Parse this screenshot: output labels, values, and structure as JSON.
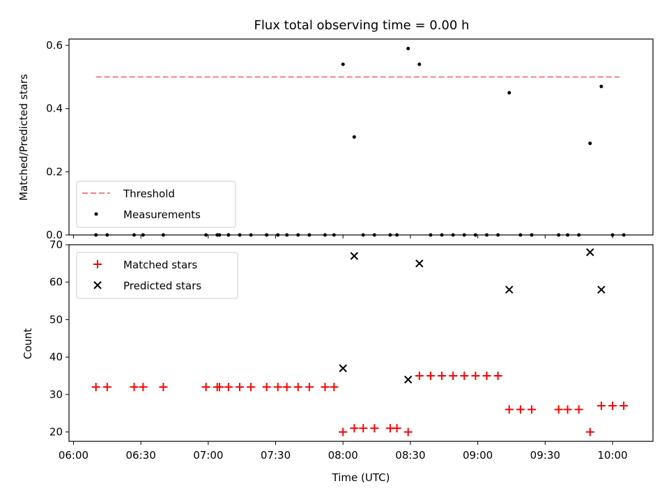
{
  "chart_data": [
    {
      "type": "scatter",
      "title": "Flux total observing time = 0.00 h",
      "ylabel": "Matched/Predicted stars",
      "ylim": [
        0,
        0.62
      ],
      "yticks": [
        0.0,
        0.2,
        0.4,
        0.6
      ],
      "ytick_labels": [
        "0.0",
        "0.2",
        "0.4",
        "0.6"
      ],
      "legend_placement": "lower-left",
      "threshold": {
        "name": "Threshold",
        "value": 0.5,
        "x_start": "06:10",
        "x_end": "10:03",
        "color": "#f08080"
      },
      "series": [
        {
          "name": "Measurements",
          "color": "#000000",
          "x": [
            "06:10",
            "06:15",
            "06:27",
            "06:31",
            "06:40",
            "06:59",
            "07:04",
            "07:05",
            "07:09",
            "07:14",
            "07:19",
            "07:26",
            "07:31",
            "07:35",
            "07:40",
            "07:45",
            "07:52",
            "07:56",
            "08:00",
            "08:05",
            "08:09",
            "08:14",
            "08:21",
            "08:24",
            "08:29",
            "08:34",
            "08:39",
            "08:44",
            "08:49",
            "08:54",
            "08:59",
            "09:04",
            "09:09",
            "09:14",
            "09:19",
            "09:24",
            "09:36",
            "09:40",
            "09:45",
            "09:50",
            "09:55",
            "10:00",
            "10:05"
          ],
          "y": [
            0,
            0,
            0,
            0,
            0,
            0,
            0,
            0,
            0,
            0,
            0,
            0,
            0,
            0,
            0,
            0,
            0,
            0,
            0.54,
            0.31,
            0,
            0,
            0,
            0,
            0.59,
            0.54,
            0,
            0,
            0,
            0,
            0,
            0,
            0,
            0.45,
            0,
            0,
            0,
            0,
            0,
            0.29,
            0.47,
            0,
            0
          ]
        }
      ]
    },
    {
      "type": "scatter",
      "xlabel": "Time (UTC)",
      "ylabel": "Count",
      "ylim": [
        17.5,
        70
      ],
      "yticks": [
        20,
        30,
        40,
        50,
        60,
        70
      ],
      "ytick_labels": [
        "20",
        "30",
        "40",
        "50",
        "60",
        "70"
      ],
      "xlim": [
        "05:58",
        "10:18"
      ],
      "xticks": [
        "06:00",
        "06:30",
        "07:00",
        "07:30",
        "08:00",
        "08:30",
        "09:00",
        "09:30",
        "10:00"
      ],
      "legend_placement": "upper-left",
      "series": [
        {
          "name": "Matched stars",
          "marker": "plus",
          "color": "#ff0000",
          "x": [
            "06:10",
            "06:15",
            "06:27",
            "06:31",
            "06:40",
            "06:59",
            "07:04",
            "07:05",
            "07:09",
            "07:14",
            "07:19",
            "07:26",
            "07:31",
            "07:35",
            "07:40",
            "07:45",
            "07:52",
            "07:56",
            "08:00",
            "08:05",
            "08:09",
            "08:14",
            "08:21",
            "08:24",
            "08:29",
            "08:34",
            "08:39",
            "08:44",
            "08:49",
            "08:54",
            "08:59",
            "09:04",
            "09:09",
            "09:14",
            "09:19",
            "09:24",
            "09:36",
            "09:40",
            "09:45",
            "09:50",
            "09:55",
            "10:00",
            "10:05"
          ],
          "y": [
            32,
            32,
            32,
            32,
            32,
            32,
            32,
            32,
            32,
            32,
            32,
            32,
            32,
            32,
            32,
            32,
            32,
            32,
            20,
            21,
            21,
            21,
            21,
            21,
            20,
            35,
            35,
            35,
            35,
            35,
            35,
            35,
            35,
            26,
            26,
            26,
            26,
            26,
            26,
            20,
            27,
            27,
            27
          ]
        },
        {
          "name": "Predicted stars",
          "marker": "x",
          "color": "#000000",
          "x": [
            "08:00",
            "08:05",
            "08:29",
            "08:34",
            "09:14",
            "09:50",
            "09:55"
          ],
          "y": [
            37,
            67,
            34,
            65,
            58,
            68,
            58
          ]
        }
      ]
    }
  ]
}
